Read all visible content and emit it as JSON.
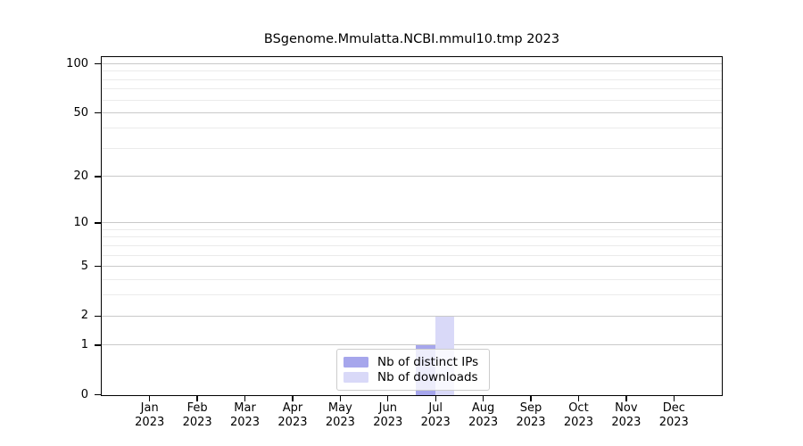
{
  "chart_data": {
    "type": "bar",
    "title": "BSgenome.Mmulatta.NCBI.mmul10.tmp 2023",
    "categories": [
      "Jan 2023",
      "Feb 2023",
      "Mar 2023",
      "Apr 2023",
      "May 2023",
      "Jun 2023",
      "Jul 2023",
      "Aug 2023",
      "Sep 2023",
      "Oct 2023",
      "Nov 2023",
      "Dec 2023"
    ],
    "x_tick_months": [
      "Jan",
      "Feb",
      "Mar",
      "Apr",
      "May",
      "Jun",
      "Jul",
      "Aug",
      "Sep",
      "Oct",
      "Nov",
      "Dec"
    ],
    "x_tick_year": "2023",
    "series": [
      {
        "name": "Nb of distinct IPs",
        "color": "#a6a6ec",
        "values": [
          0,
          0,
          0,
          0,
          0,
          0,
          1,
          0,
          0,
          0,
          0,
          0
        ]
      },
      {
        "name": "Nb of downloads",
        "color": "#d9d9f8",
        "values": [
          0,
          0,
          0,
          0,
          0,
          0,
          2,
          0,
          0,
          0,
          0,
          0
        ]
      }
    ],
    "yscale": "log1p",
    "ylim": [
      0,
      100
    ],
    "yticks": [
      0,
      1,
      2,
      5,
      10,
      20,
      50,
      100
    ],
    "yticks_minor": [
      3,
      4,
      6,
      7,
      8,
      9,
      30,
      40,
      60,
      70,
      80,
      90
    ],
    "grid": true,
    "legend_position": "inside-bottom-center"
  },
  "colors": {
    "grid_major": "#c9c9c9",
    "grid_minor": "#ebebeb",
    "axis": "#000000",
    "background": "#ffffff",
    "legend_border": "#cccccc"
  }
}
